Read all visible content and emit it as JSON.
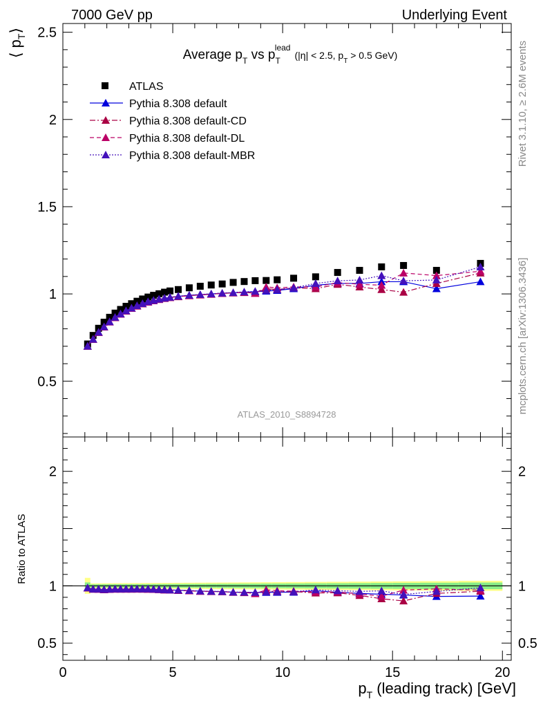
{
  "header": {
    "left": "7000 GeV pp",
    "right": "Underlying Event"
  },
  "side_labels": {
    "rivet": "Rivet 3.1.10, ≥ 2.6M events",
    "mcplots": "mcplots.cern.ch [arXiv:1306.3436]"
  },
  "chart_data": [
    {
      "type": "scatter",
      "panel": "main",
      "title": {
        "main": "Average p",
        "main_sub": "T",
        "vs": " vs p",
        "vs_sub": "T",
        "vs_sup": "lead",
        "cut1": "(|η| < 2.5, p",
        "cut_sub": "T",
        "cut2": " > 0.5 GeV)"
      },
      "ylabel": {
        "open": "⟨ p",
        "sub": "T",
        "close": "⟩"
      },
      "ylim": [
        0.18,
        2.55
      ],
      "yticks": [
        {
          "v": 0.5,
          "label": "0.5"
        },
        {
          "v": 1,
          "label": "1"
        },
        {
          "v": 1.5,
          "label": "1.5"
        },
        {
          "v": 2,
          "label": "2"
        },
        {
          "v": 2.5,
          "label": "2.5"
        }
      ],
      "watermark": "ATLAS_2010_S8894728",
      "legend_position": "top-left",
      "x": [
        1.125,
        1.375,
        1.625,
        1.875,
        2.125,
        2.375,
        2.625,
        2.875,
        3.125,
        3.375,
        3.625,
        3.875,
        4.125,
        4.375,
        4.625,
        4.875,
        5.25,
        5.75,
        6.25,
        6.75,
        7.25,
        7.75,
        8.25,
        8.75,
        9.25,
        9.75,
        10.5,
        11.5,
        12.5,
        13.5,
        14.5,
        15.5,
        17.0,
        19.0
      ],
      "series": [
        {
          "name": "ATLAS",
          "style": "data",
          "color": "#000000",
          "values": [
            0.713,
            0.762,
            0.803,
            0.838,
            0.866,
            0.89,
            0.911,
            0.929,
            0.944,
            0.958,
            0.971,
            0.982,
            0.992,
            1.001,
            1.01,
            1.017,
            1.025,
            1.035,
            1.044,
            1.051,
            1.057,
            1.066,
            1.071,
            1.076,
            1.077,
            1.081,
            1.09,
            1.098,
            1.123,
            1.135,
            1.155,
            1.163,
            1.135,
            1.175
          ]
        },
        {
          "name": "Pythia 8.308 default",
          "style": "solid",
          "color": "#0000dd",
          "values": [
            0.7,
            0.74,
            0.78,
            0.81,
            0.84,
            0.865,
            0.885,
            0.903,
            0.918,
            0.932,
            0.944,
            0.955,
            0.962,
            0.969,
            0.975,
            0.98,
            0.986,
            0.992,
            0.996,
            1.0,
            1.004,
            1.007,
            1.01,
            1.013,
            1.016,
            1.02,
            1.03,
            1.05,
            1.06,
            1.06,
            1.07,
            1.07,
            1.03,
            1.07
          ]
        },
        {
          "name": "Pythia 8.308 default-CD",
          "style": "dashdot",
          "color": "#aa0044",
          "values": [
            0.7,
            0.74,
            0.78,
            0.81,
            0.84,
            0.864,
            0.885,
            0.902,
            0.917,
            0.93,
            0.943,
            0.953,
            0.961,
            0.968,
            0.974,
            0.979,
            0.984,
            0.99,
            0.994,
            0.998,
            1.003,
            1.006,
            1.008,
            1.005,
            1.03,
            1.025,
            1.035,
            1.03,
            1.055,
            1.04,
            1.025,
            1.01,
            1.06,
            1.12
          ]
        },
        {
          "name": "Pythia 8.308 default-DL",
          "style": "dashed",
          "color": "#bb0066",
          "values": [
            0.7,
            0.74,
            0.779,
            0.81,
            0.839,
            0.864,
            0.884,
            0.902,
            0.917,
            0.931,
            0.943,
            0.953,
            0.961,
            0.968,
            0.974,
            0.979,
            0.985,
            0.99,
            0.995,
            0.999,
            1.003,
            1.006,
            1.01,
            1.003,
            1.04,
            1.035,
            1.04,
            1.04,
            1.065,
            1.055,
            1.05,
            1.12,
            1.105,
            1.13
          ]
        },
        {
          "name": "Pythia 8.308 default-MBR",
          "style": "dotted",
          "color": "#4411bb",
          "values": [
            0.701,
            0.741,
            0.781,
            0.812,
            0.841,
            0.866,
            0.886,
            0.904,
            0.919,
            0.933,
            0.945,
            0.956,
            0.963,
            0.97,
            0.976,
            0.981,
            0.987,
            0.993,
            0.997,
            1.001,
            1.005,
            1.008,
            1.012,
            1.015,
            1.02,
            1.025,
            1.035,
            1.06,
            1.075,
            1.08,
            1.105,
            1.075,
            1.08,
            1.155
          ]
        }
      ]
    },
    {
      "type": "scatter",
      "panel": "ratio",
      "ylabel": "Ratio to ATLAS",
      "ylim": [
        0.35,
        2.3
      ],
      "yticks": [
        {
          "v": 0.5,
          "label": "0.5"
        },
        {
          "v": 1,
          "label": "1"
        },
        {
          "v": 2,
          "label": "2"
        }
      ],
      "xlabel": {
        "p": "p",
        "sub": "T",
        "rest": " (leading track) [GeV]"
      },
      "xlim": [
        0,
        20.4
      ],
      "xticks": [
        {
          "v": 0,
          "label": "0"
        },
        {
          "v": 5,
          "label": "5"
        },
        {
          "v": 10,
          "label": "10"
        },
        {
          "v": 15,
          "label": "15"
        },
        {
          "v": 20,
          "label": "20"
        }
      ]
    }
  ]
}
